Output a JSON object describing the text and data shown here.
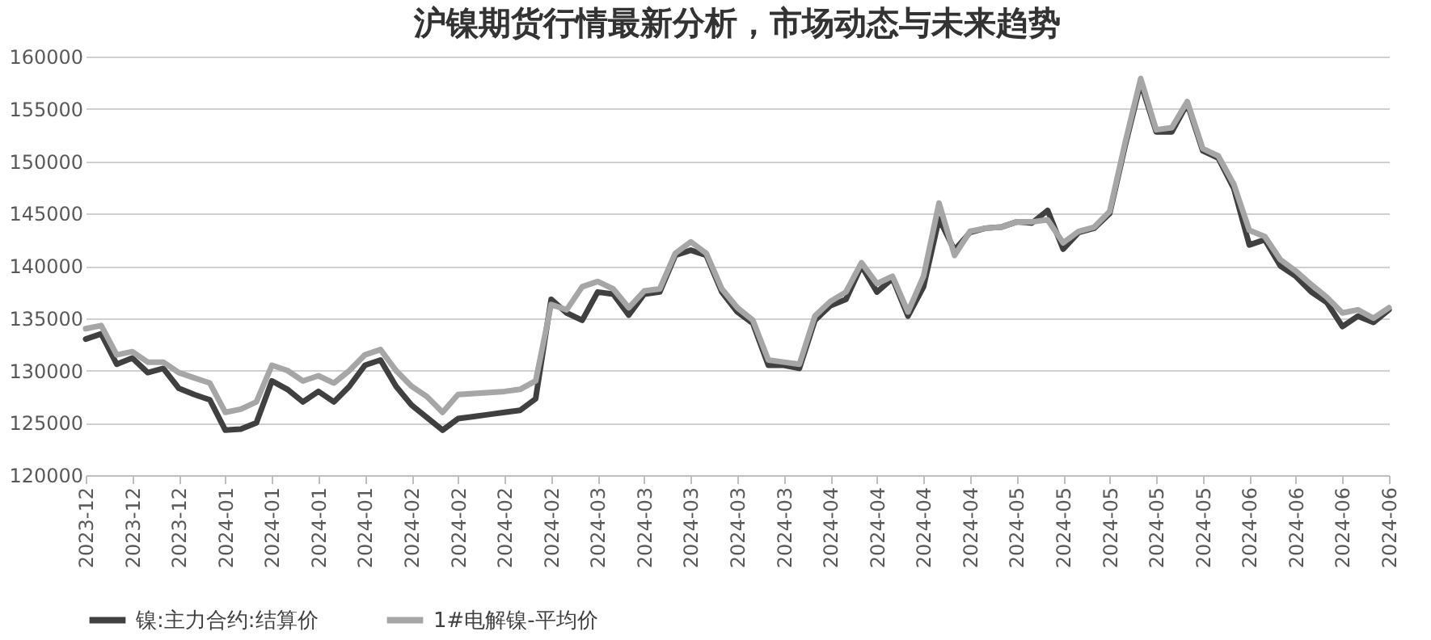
{
  "chart_data": {
    "type": "line",
    "title": "沪镍期货行情最新分析，市场动态与未来趋势",
    "categories": [
      "2023-12",
      null,
      null,
      "2023-12",
      null,
      null,
      "2023-12",
      null,
      null,
      "2024-01",
      null,
      null,
      "2024-01",
      null,
      null,
      "2024-01",
      null,
      null,
      "2024-01",
      null,
      null,
      "2024-02",
      null,
      null,
      "2024-02",
      null,
      null,
      "2024-02",
      null,
      null,
      "2024-02",
      null,
      null,
      "2024-03",
      null,
      null,
      "2024-03",
      null,
      null,
      "2024-03",
      null,
      null,
      "2024-03",
      null,
      null,
      "2024-03",
      null,
      null,
      "2024-04",
      null,
      null,
      "2024-04",
      null,
      null,
      "2024-04",
      null,
      null,
      "2024-04",
      null,
      null,
      "2024-05",
      null,
      null,
      "2024-05",
      null,
      null,
      "2024-05",
      null,
      null,
      "2024-05",
      null,
      null,
      "2024-05",
      null,
      null,
      "2024-06",
      null,
      null,
      "2024-06",
      null,
      null,
      "2024-06",
      null,
      null,
      "2024-06"
    ],
    "series": [
      {
        "name": "镍:主力合约:结算价",
        "color": "#404040",
        "values": [
          133000,
          133500,
          130600,
          131200,
          129800,
          130200,
          128300,
          127700,
          127200,
          124300,
          124400,
          125000,
          129000,
          128200,
          127000,
          128000,
          127000,
          128500,
          130500,
          131000,
          128500,
          126700,
          125500,
          124300,
          125400,
          125600,
          125800,
          126000,
          126200,
          127300,
          136800,
          135500,
          134800,
          137500,
          137300,
          135300,
          137300,
          137500,
          141000,
          141500,
          141000,
          137500,
          135600,
          134500,
          130500,
          130500,
          130200,
          134800,
          136200,
          136800,
          140000,
          137500,
          138800,
          135200,
          138000,
          144500,
          141500,
          143200,
          143600,
          143700,
          144200,
          144100,
          145300,
          141600,
          143200,
          143600,
          145000,
          151500,
          157500,
          152800,
          152800,
          155500,
          151000,
          150300,
          147400,
          142000,
          142500,
          140000,
          139000,
          137500,
          136500,
          134200,
          135200,
          134600,
          135800
        ]
      },
      {
        "name": "1#电解镍-平均价",
        "color": "#a6a6a6",
        "values": [
          134000,
          134300,
          131500,
          131800,
          130800,
          130800,
          129800,
          129300,
          128800,
          126000,
          126300,
          127000,
          130500,
          130000,
          129000,
          129500,
          128800,
          130000,
          131500,
          132000,
          130000,
          128500,
          127500,
          126000,
          127700,
          127800,
          127900,
          128000,
          128200,
          129000,
          136300,
          135800,
          138000,
          138500,
          137800,
          136000,
          137600,
          137800,
          141200,
          142300,
          141200,
          137800,
          136000,
          134800,
          131000,
          130800,
          130600,
          135200,
          136600,
          137500,
          140300,
          138300,
          139000,
          135600,
          139000,
          146000,
          141000,
          143300,
          143600,
          143700,
          144200,
          144200,
          144400,
          142200,
          143300,
          143700,
          145200,
          151800,
          157900,
          153000,
          153200,
          155700,
          151200,
          150500,
          147800,
          143400,
          142800,
          140600,
          139500,
          138200,
          137000,
          135500,
          135800,
          135000,
          136000
        ]
      }
    ],
    "ylim": [
      120000,
      160000
    ],
    "yticks": [
      120000,
      125000,
      130000,
      135000,
      140000,
      145000,
      150000,
      155000,
      160000
    ],
    "grid": "y",
    "legend": "bottom",
    "marker": "none",
    "line_style": "solid"
  }
}
